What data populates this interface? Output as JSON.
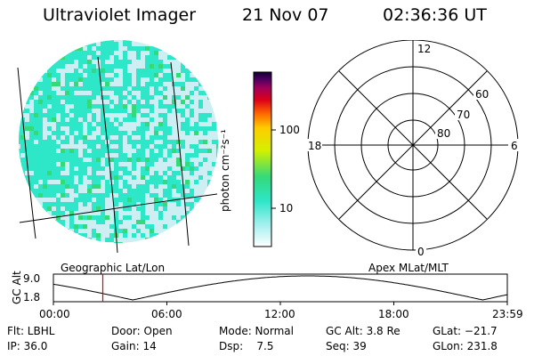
{
  "header": {
    "title": "Ultraviolet Imager",
    "date": "21 Nov 07",
    "time": "02:36:36 UT"
  },
  "image_panel": {
    "label": "Geographic Lat/Lon",
    "colors": {
      "dominant": "#2ee6c8",
      "light": "#cdeef2",
      "speckle": "#34d97a"
    }
  },
  "colorbar": {
    "unit_label": "photon cm⁻²s⁻¹",
    "ticks": [
      "100",
      "10"
    ]
  },
  "polar_plot": {
    "label": "Apex MLat/MLT",
    "mlt_labels": {
      "top": "12",
      "left": "18",
      "right": "6",
      "bottom": "0"
    },
    "lat_labels": [
      "60",
      "70",
      "80"
    ]
  },
  "altitude_plot": {
    "y_axis_title": "GC Alt",
    "y_ticks": [
      "9.0",
      "1.8"
    ],
    "x_ticks": [
      "00:00",
      "06:00",
      "12:00",
      "18:00",
      "23:59"
    ],
    "marker_time_hours": 2.61
  },
  "info": {
    "row1": [
      "Flt: LBHL",
      "Door: Open",
      "Mode: Normal",
      "GC Alt: 3.8 Re",
      "GLat: −21.7"
    ],
    "row2": [
      "IP: 36.0",
      "Gain: 14",
      "Dsp:    7.5",
      "Seq: 39",
      "GLon: 231.8"
    ]
  }
}
